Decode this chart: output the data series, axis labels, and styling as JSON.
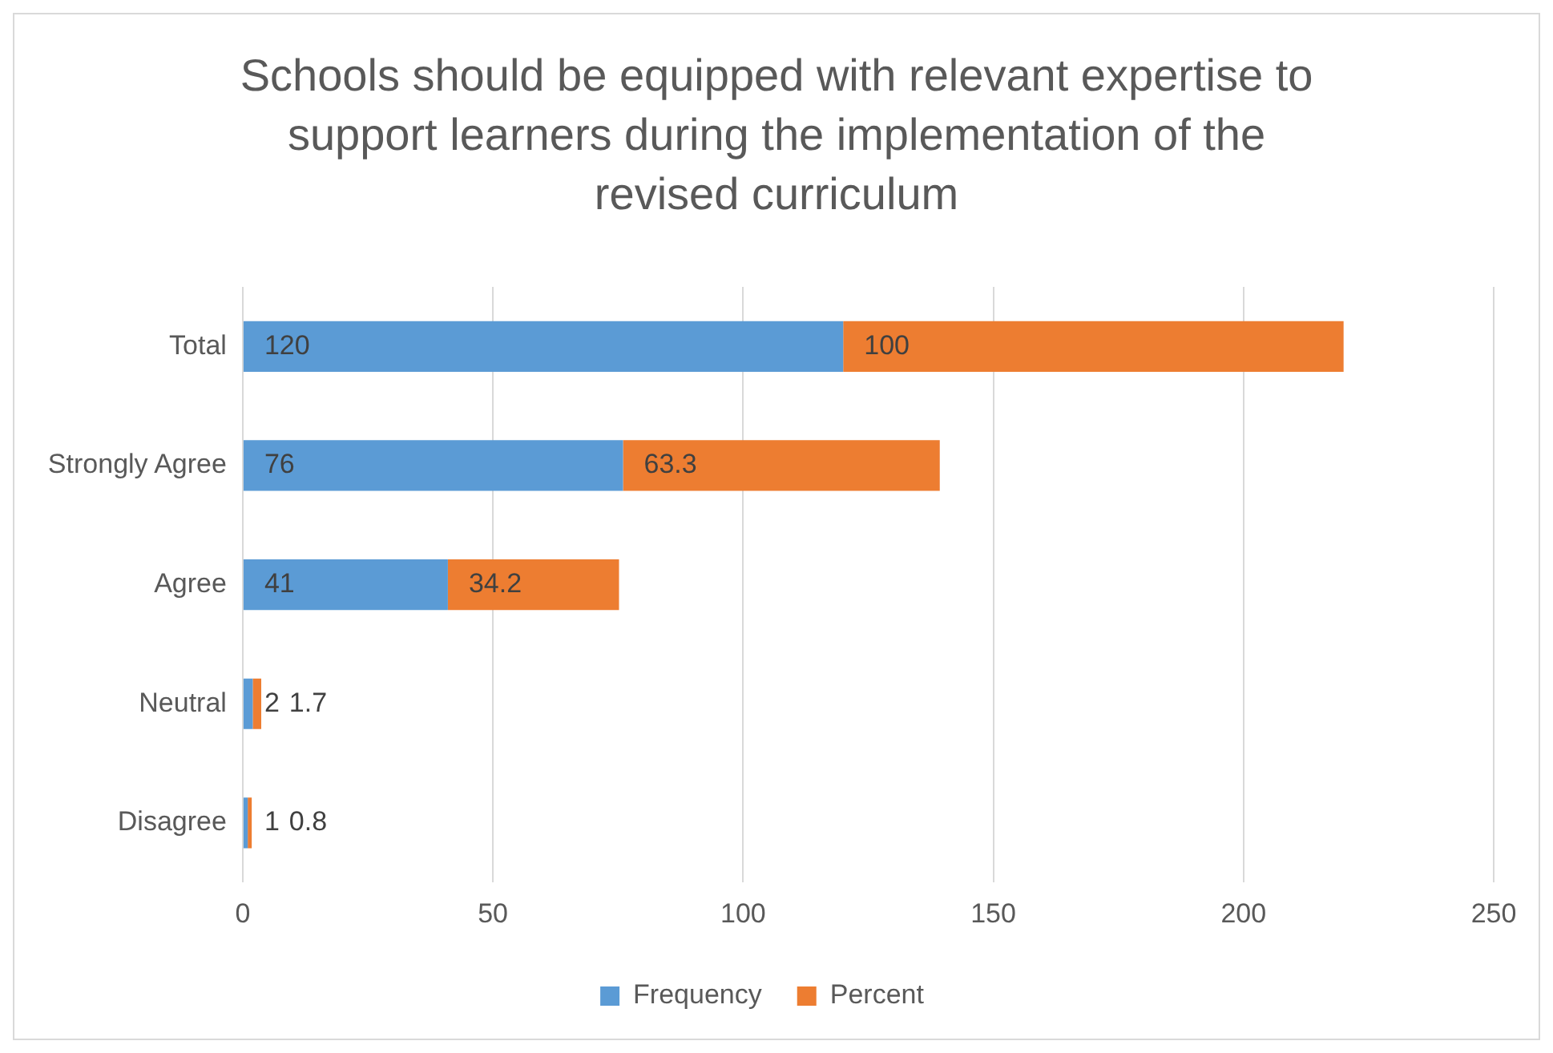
{
  "chart_data": {
    "type": "bar",
    "orientation": "horizontal",
    "stacked": true,
    "title": "Schools should be equipped with relevant expertise to support learners during the implementation of the revised curriculum",
    "categories": [
      "Total",
      "Strongly Agree",
      "Agree",
      "Neutral",
      "Disagree"
    ],
    "series": [
      {
        "name": "Frequency",
        "color": "#5b9bd5",
        "values": [
          120,
          76,
          41,
          2,
          1
        ]
      },
      {
        "name": "Percent",
        "color": "#ed7d31",
        "values": [
          100,
          63.3,
          34.2,
          1.7,
          0.8
        ]
      }
    ],
    "xlim": [
      0,
      250
    ],
    "xticks": [
      0,
      50,
      100,
      150,
      200,
      250
    ],
    "grid": "x",
    "legend": "bottom",
    "data_labels": true
  }
}
